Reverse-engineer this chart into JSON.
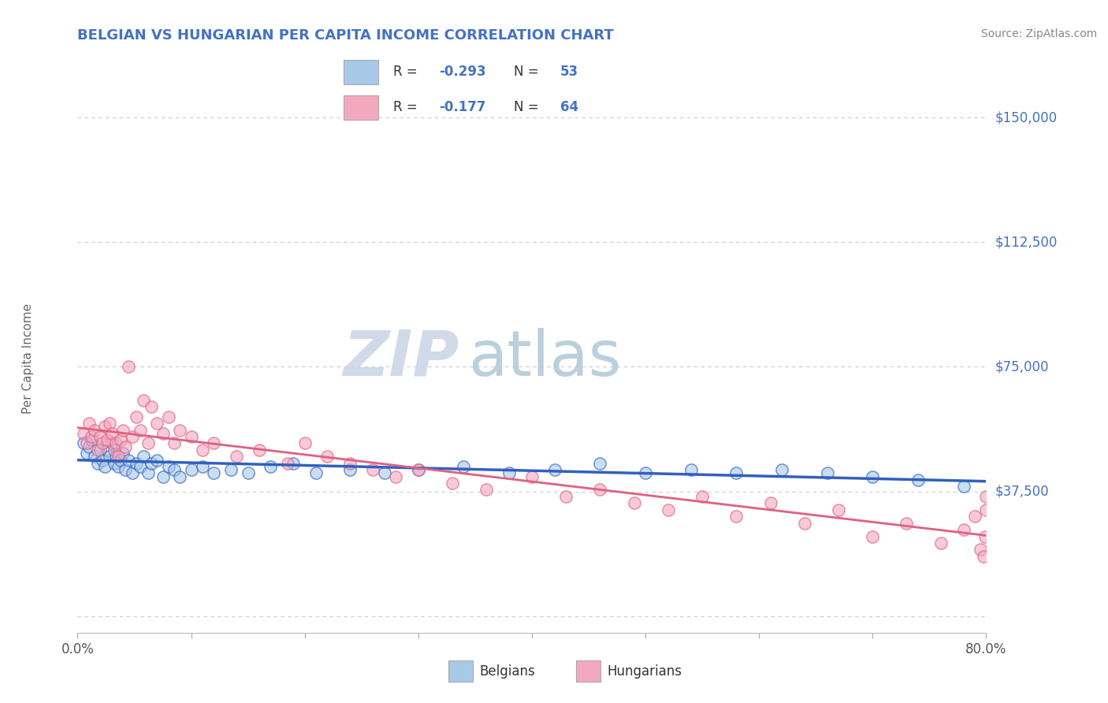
{
  "title": "BELGIAN VS HUNGARIAN PER CAPITA INCOME CORRELATION CHART",
  "source_text": "Source: ZipAtlas.com",
  "ylabel": "Per Capita Income",
  "xlim": [
    0.0,
    0.8
  ],
  "ylim": [
    -5000,
    160000
  ],
  "yticks": [
    0,
    37500,
    75000,
    112500,
    150000
  ],
  "ytick_labels": [
    "",
    "$37,500",
    "$75,000",
    "$112,500",
    "$150,000"
  ],
  "xticks": [
    0.0,
    0.1,
    0.2,
    0.3,
    0.4,
    0.5,
    0.6,
    0.7,
    0.8
  ],
  "xtick_labels": [
    "0.0%",
    "",
    "",
    "",
    "",
    "",
    "",
    "",
    "80.0%"
  ],
  "belgian_color": "#a8c8e8",
  "hungarian_color": "#f4a8c0",
  "trend_belgian_color": "#3060c0",
  "trend_hungarian_color": "#e06080",
  "legend_R_color": "#4472c4",
  "legend_N_color": "#4472c4",
  "watermark_zip": "ZIP",
  "watermark_atlas": "atlas",
  "watermark_color_zip": "#c8d4e4",
  "watermark_color_atlas": "#b0c8d8",
  "background_color": "#ffffff",
  "grid_color": "#cccccc",
  "ylabel_color": "#666666",
  "ytick_color": "#4472c4",
  "title_color": "#4472c4",
  "source_color": "#888888",
  "belgian_x": [
    0.005,
    0.008,
    0.01,
    0.012,
    0.015,
    0.018,
    0.02,
    0.022,
    0.024,
    0.026,
    0.028,
    0.03,
    0.032,
    0.034,
    0.036,
    0.038,
    0.04,
    0.042,
    0.045,
    0.048,
    0.052,
    0.055,
    0.058,
    0.062,
    0.065,
    0.07,
    0.075,
    0.08,
    0.085,
    0.09,
    0.1,
    0.11,
    0.12,
    0.135,
    0.15,
    0.17,
    0.19,
    0.21,
    0.24,
    0.27,
    0.3,
    0.34,
    0.38,
    0.42,
    0.46,
    0.5,
    0.54,
    0.58,
    0.62,
    0.66,
    0.7,
    0.74,
    0.78
  ],
  "belgian_y": [
    52000,
    49000,
    51000,
    53000,
    48000,
    46000,
    50000,
    47000,
    45000,
    50000,
    48000,
    52000,
    46000,
    48000,
    45000,
    47000,
    49000,
    44000,
    47000,
    43000,
    46000,
    45000,
    48000,
    43000,
    46000,
    47000,
    42000,
    45000,
    44000,
    42000,
    44000,
    45000,
    43000,
    44000,
    43000,
    45000,
    46000,
    43000,
    44000,
    43000,
    44000,
    45000,
    43000,
    44000,
    46000,
    43000,
    44000,
    43000,
    44000,
    43000,
    42000,
    41000,
    39000
  ],
  "hungarian_x": [
    0.005,
    0.008,
    0.01,
    0.012,
    0.015,
    0.018,
    0.02,
    0.022,
    0.024,
    0.026,
    0.028,
    0.03,
    0.032,
    0.034,
    0.036,
    0.038,
    0.04,
    0.042,
    0.045,
    0.048,
    0.052,
    0.055,
    0.058,
    0.062,
    0.065,
    0.07,
    0.075,
    0.08,
    0.085,
    0.09,
    0.1,
    0.11,
    0.12,
    0.14,
    0.16,
    0.185,
    0.2,
    0.22,
    0.24,
    0.26,
    0.28,
    0.3,
    0.33,
    0.36,
    0.4,
    0.43,
    0.46,
    0.49,
    0.52,
    0.55,
    0.58,
    0.61,
    0.64,
    0.67,
    0.7,
    0.73,
    0.76,
    0.78,
    0.79,
    0.795,
    0.798,
    0.799,
    0.8,
    0.8
  ],
  "hungarian_y": [
    55000,
    52000,
    58000,
    54000,
    56000,
    50000,
    54000,
    52000,
    57000,
    53000,
    58000,
    55000,
    50000,
    52000,
    48000,
    53000,
    56000,
    51000,
    75000,
    54000,
    60000,
    56000,
    65000,
    52000,
    63000,
    58000,
    55000,
    60000,
    52000,
    56000,
    54000,
    50000,
    52000,
    48000,
    50000,
    46000,
    52000,
    48000,
    46000,
    44000,
    42000,
    44000,
    40000,
    38000,
    42000,
    36000,
    38000,
    34000,
    32000,
    36000,
    30000,
    34000,
    28000,
    32000,
    24000,
    28000,
    22000,
    26000,
    30000,
    20000,
    18000,
    24000,
    32000,
    36000
  ]
}
